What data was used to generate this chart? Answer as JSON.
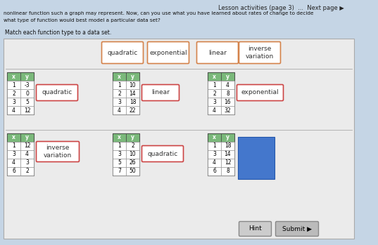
{
  "bg_color": "#c5d5e5",
  "content_bg": "#e8e8e8",
  "title_text": "Lesson activities (page 3)  ...  Next page ▶",
  "body_text1": "nonlinear function such a graph may represent. Now, can you use what you have learned about rates of change to decide",
  "body_text2": "what type of function would best model a particular data set?",
  "body_text3": "Match each function type to a data set.",
  "answer_boxes": [
    "quadratic",
    "exponential",
    "linear",
    "inverse\nvariation"
  ],
  "top_left_table": {
    "headers": [
      "x",
      "y"
    ],
    "rows": [
      [
        "1",
        "-3"
      ],
      [
        "2",
        "0"
      ],
      [
        "3",
        "5"
      ],
      [
        "4",
        "12"
      ]
    ]
  },
  "top_left_label": "quadratic",
  "top_mid_table": {
    "headers": [
      "x",
      "y"
    ],
    "rows": [
      [
        "1",
        "10"
      ],
      [
        "2",
        "14"
      ],
      [
        "3",
        "18"
      ],
      [
        "4",
        "22"
      ]
    ]
  },
  "top_mid_label": "linear",
  "top_right_table": {
    "headers": [
      "x",
      "y"
    ],
    "rows": [
      [
        "1",
        "4"
      ],
      [
        "2",
        "8"
      ],
      [
        "3",
        "16"
      ],
      [
        "4",
        "32"
      ]
    ]
  },
  "top_right_label": "exponential",
  "bot_left_table": {
    "headers": [
      "x",
      "y"
    ],
    "rows": [
      [
        "1",
        "12"
      ],
      [
        "3",
        "4"
      ],
      [
        "4",
        "3"
      ],
      [
        "6",
        "2"
      ]
    ]
  },
  "bot_left_label": "inverse\nvariation",
  "bot_mid_table": {
    "headers": [
      "x",
      "y"
    ],
    "rows": [
      [
        "1",
        "2"
      ],
      [
        "3",
        "10"
      ],
      [
        "5",
        "26"
      ],
      [
        "7",
        "50"
      ]
    ]
  },
  "bot_mid_label": "quadratic",
  "bot_right_table": {
    "headers": [
      "x",
      "y"
    ],
    "rows": [
      [
        "1",
        "18"
      ],
      [
        "3",
        "14"
      ],
      [
        "4",
        "12"
      ],
      [
        "6",
        "8"
      ]
    ]
  },
  "hint_btn": "Hint",
  "submit_btn": "Submit ▶",
  "header_color": "#7ab87a",
  "blue_box_color": "#4477cc",
  "answer_border": "#d4824a",
  "label_border": "#cc4444"
}
